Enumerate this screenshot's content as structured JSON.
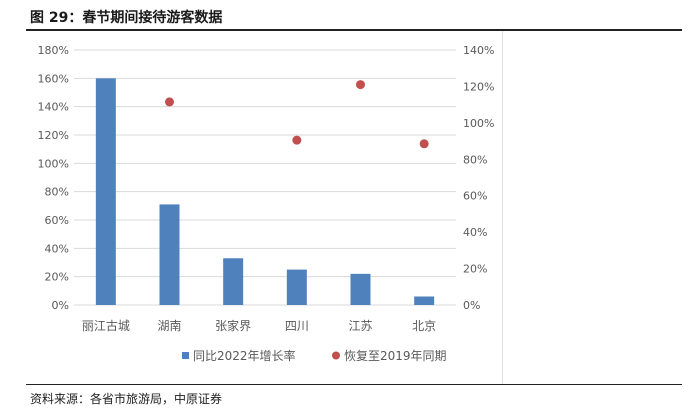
{
  "title": "图 29：春节期间接待游客数据",
  "source": "资料来源：各省市旅游局，中原证券",
  "chart_data": {
    "type": "bar",
    "categories": [
      "丽江古城",
      "湖南",
      "张家界",
      "四川",
      "江苏",
      "北京"
    ],
    "series": [
      {
        "name": "同比2022年增长率",
        "type": "bar",
        "axis": "left",
        "color": "#4f81bd",
        "values": [
          160,
          71,
          33,
          25,
          22,
          6
        ]
      },
      {
        "name": "恢复至2019年同期",
        "type": "scatter",
        "axis": "right",
        "color": "#c0504d",
        "values": [
          null,
          111.5,
          null,
          90.5,
          121,
          88.5
        ]
      }
    ],
    "ylim_left": [
      0,
      180
    ],
    "yticks_left": [
      "0%",
      "20%",
      "40%",
      "60%",
      "80%",
      "100%",
      "120%",
      "140%",
      "160%",
      "180%"
    ],
    "ylim_right": [
      0,
      140
    ],
    "yticks_right": [
      "0%",
      "20%",
      "40%",
      "60%",
      "80%",
      "100%",
      "120%",
      "140%"
    ],
    "legend": "bottom",
    "grid": true
  }
}
